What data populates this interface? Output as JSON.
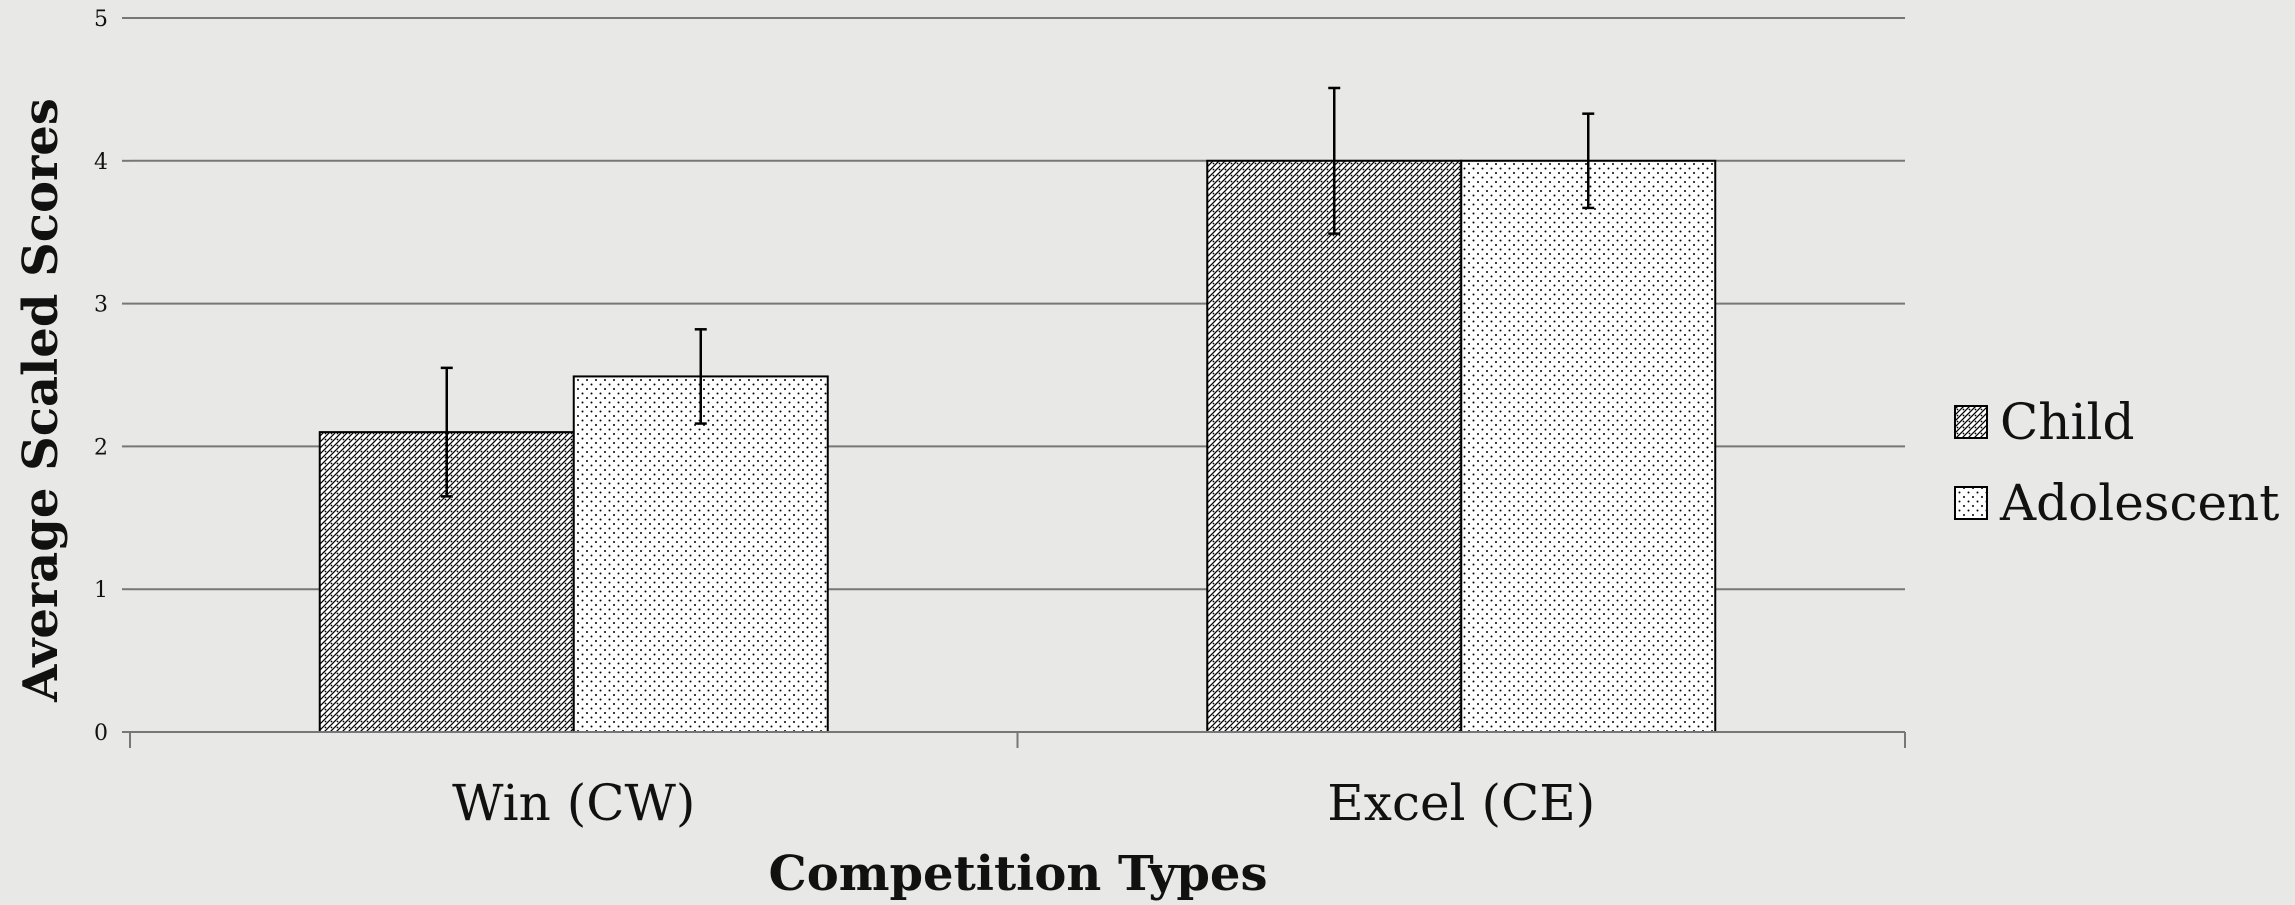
{
  "chart_data": {
    "type": "bar",
    "title": "",
    "xlabel": "Competition Types",
    "ylabel": "Average Scaled Scores",
    "categories": [
      "Win (CW)",
      "Excel (CE)"
    ],
    "ylim": [
      0,
      5
    ],
    "yticks": [
      "0",
      "1",
      "2",
      "3",
      "4",
      "5"
    ],
    "grid": true,
    "legend_position": "right",
    "series": [
      {
        "name": "Child",
        "pattern": "dense-crosshatch",
        "values": [
          2.1,
          4.0
        ],
        "error": [
          0.45,
          0.51
        ]
      },
      {
        "name": "Adolescent",
        "pattern": "sparse-dots",
        "values": [
          2.49,
          4.0
        ],
        "error": [
          0.33,
          0.33
        ]
      }
    ],
    "colors": {
      "background": "#e8e8e6",
      "gridline": "#777777",
      "bar_fill": "#ffffff",
      "bar_pattern": "#000000"
    }
  }
}
